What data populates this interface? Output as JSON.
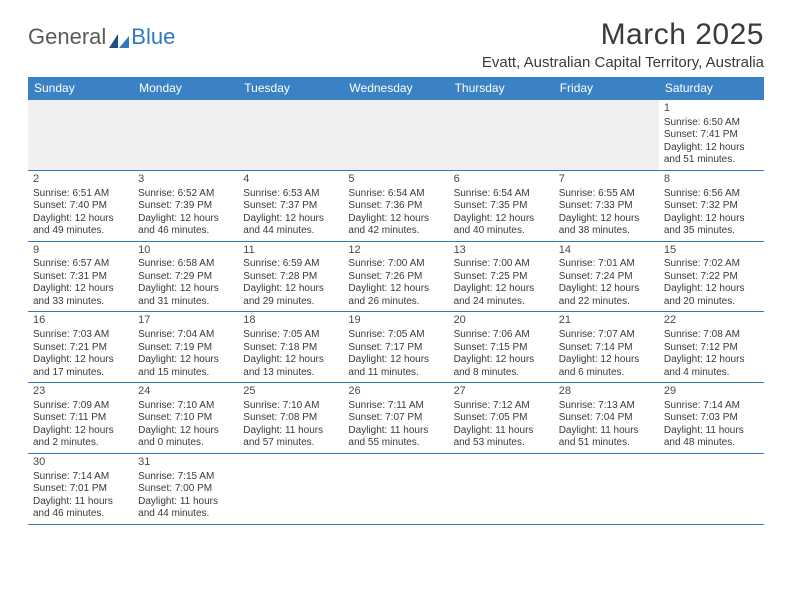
{
  "logo": {
    "text_gray": "General",
    "text_blue": "Blue"
  },
  "title": "March 2025",
  "location": "Evatt, Australian Capital Territory, Australia",
  "colors": {
    "header_bg": "#3b82c4",
    "header_text": "#ffffff",
    "rule": "#2f7abf",
    "body_text": "#3a3a3a",
    "logo_gray": "#5a5a5a",
    "logo_blue": "#2f7abf",
    "blank_bg": "#efefef"
  },
  "daynames": [
    "Sunday",
    "Monday",
    "Tuesday",
    "Wednesday",
    "Thursday",
    "Friday",
    "Saturday"
  ],
  "weeks": [
    [
      null,
      null,
      null,
      null,
      null,
      null,
      {
        "n": "1",
        "sr": "Sunrise: 6:50 AM",
        "ss": "Sunset: 7:41 PM",
        "dl1": "Daylight: 12 hours",
        "dl2": "and 51 minutes."
      }
    ],
    [
      {
        "n": "2",
        "sr": "Sunrise: 6:51 AM",
        "ss": "Sunset: 7:40 PM",
        "dl1": "Daylight: 12 hours",
        "dl2": "and 49 minutes."
      },
      {
        "n": "3",
        "sr": "Sunrise: 6:52 AM",
        "ss": "Sunset: 7:39 PM",
        "dl1": "Daylight: 12 hours",
        "dl2": "and 46 minutes."
      },
      {
        "n": "4",
        "sr": "Sunrise: 6:53 AM",
        "ss": "Sunset: 7:37 PM",
        "dl1": "Daylight: 12 hours",
        "dl2": "and 44 minutes."
      },
      {
        "n": "5",
        "sr": "Sunrise: 6:54 AM",
        "ss": "Sunset: 7:36 PM",
        "dl1": "Daylight: 12 hours",
        "dl2": "and 42 minutes."
      },
      {
        "n": "6",
        "sr": "Sunrise: 6:54 AM",
        "ss": "Sunset: 7:35 PM",
        "dl1": "Daylight: 12 hours",
        "dl2": "and 40 minutes."
      },
      {
        "n": "7",
        "sr": "Sunrise: 6:55 AM",
        "ss": "Sunset: 7:33 PM",
        "dl1": "Daylight: 12 hours",
        "dl2": "and 38 minutes."
      },
      {
        "n": "8",
        "sr": "Sunrise: 6:56 AM",
        "ss": "Sunset: 7:32 PM",
        "dl1": "Daylight: 12 hours",
        "dl2": "and 35 minutes."
      }
    ],
    [
      {
        "n": "9",
        "sr": "Sunrise: 6:57 AM",
        "ss": "Sunset: 7:31 PM",
        "dl1": "Daylight: 12 hours",
        "dl2": "and 33 minutes."
      },
      {
        "n": "10",
        "sr": "Sunrise: 6:58 AM",
        "ss": "Sunset: 7:29 PM",
        "dl1": "Daylight: 12 hours",
        "dl2": "and 31 minutes."
      },
      {
        "n": "11",
        "sr": "Sunrise: 6:59 AM",
        "ss": "Sunset: 7:28 PM",
        "dl1": "Daylight: 12 hours",
        "dl2": "and 29 minutes."
      },
      {
        "n": "12",
        "sr": "Sunrise: 7:00 AM",
        "ss": "Sunset: 7:26 PM",
        "dl1": "Daylight: 12 hours",
        "dl2": "and 26 minutes."
      },
      {
        "n": "13",
        "sr": "Sunrise: 7:00 AM",
        "ss": "Sunset: 7:25 PM",
        "dl1": "Daylight: 12 hours",
        "dl2": "and 24 minutes."
      },
      {
        "n": "14",
        "sr": "Sunrise: 7:01 AM",
        "ss": "Sunset: 7:24 PM",
        "dl1": "Daylight: 12 hours",
        "dl2": "and 22 minutes."
      },
      {
        "n": "15",
        "sr": "Sunrise: 7:02 AM",
        "ss": "Sunset: 7:22 PM",
        "dl1": "Daylight: 12 hours",
        "dl2": "and 20 minutes."
      }
    ],
    [
      {
        "n": "16",
        "sr": "Sunrise: 7:03 AM",
        "ss": "Sunset: 7:21 PM",
        "dl1": "Daylight: 12 hours",
        "dl2": "and 17 minutes."
      },
      {
        "n": "17",
        "sr": "Sunrise: 7:04 AM",
        "ss": "Sunset: 7:19 PM",
        "dl1": "Daylight: 12 hours",
        "dl2": "and 15 minutes."
      },
      {
        "n": "18",
        "sr": "Sunrise: 7:05 AM",
        "ss": "Sunset: 7:18 PM",
        "dl1": "Daylight: 12 hours",
        "dl2": "and 13 minutes."
      },
      {
        "n": "19",
        "sr": "Sunrise: 7:05 AM",
        "ss": "Sunset: 7:17 PM",
        "dl1": "Daylight: 12 hours",
        "dl2": "and 11 minutes."
      },
      {
        "n": "20",
        "sr": "Sunrise: 7:06 AM",
        "ss": "Sunset: 7:15 PM",
        "dl1": "Daylight: 12 hours",
        "dl2": "and 8 minutes."
      },
      {
        "n": "21",
        "sr": "Sunrise: 7:07 AM",
        "ss": "Sunset: 7:14 PM",
        "dl1": "Daylight: 12 hours",
        "dl2": "and 6 minutes."
      },
      {
        "n": "22",
        "sr": "Sunrise: 7:08 AM",
        "ss": "Sunset: 7:12 PM",
        "dl1": "Daylight: 12 hours",
        "dl2": "and 4 minutes."
      }
    ],
    [
      {
        "n": "23",
        "sr": "Sunrise: 7:09 AM",
        "ss": "Sunset: 7:11 PM",
        "dl1": "Daylight: 12 hours",
        "dl2": "and 2 minutes."
      },
      {
        "n": "24",
        "sr": "Sunrise: 7:10 AM",
        "ss": "Sunset: 7:10 PM",
        "dl1": "Daylight: 12 hours",
        "dl2": "and 0 minutes."
      },
      {
        "n": "25",
        "sr": "Sunrise: 7:10 AM",
        "ss": "Sunset: 7:08 PM",
        "dl1": "Daylight: 11 hours",
        "dl2": "and 57 minutes."
      },
      {
        "n": "26",
        "sr": "Sunrise: 7:11 AM",
        "ss": "Sunset: 7:07 PM",
        "dl1": "Daylight: 11 hours",
        "dl2": "and 55 minutes."
      },
      {
        "n": "27",
        "sr": "Sunrise: 7:12 AM",
        "ss": "Sunset: 7:05 PM",
        "dl1": "Daylight: 11 hours",
        "dl2": "and 53 minutes."
      },
      {
        "n": "28",
        "sr": "Sunrise: 7:13 AM",
        "ss": "Sunset: 7:04 PM",
        "dl1": "Daylight: 11 hours",
        "dl2": "and 51 minutes."
      },
      {
        "n": "29",
        "sr": "Sunrise: 7:14 AM",
        "ss": "Sunset: 7:03 PM",
        "dl1": "Daylight: 11 hours",
        "dl2": "and 48 minutes."
      }
    ],
    [
      {
        "n": "30",
        "sr": "Sunrise: 7:14 AM",
        "ss": "Sunset: 7:01 PM",
        "dl1": "Daylight: 11 hours",
        "dl2": "and 46 minutes."
      },
      {
        "n": "31",
        "sr": "Sunrise: 7:15 AM",
        "ss": "Sunset: 7:00 PM",
        "dl1": "Daylight: 11 hours",
        "dl2": "and 44 minutes."
      },
      null,
      null,
      null,
      null,
      null
    ]
  ]
}
